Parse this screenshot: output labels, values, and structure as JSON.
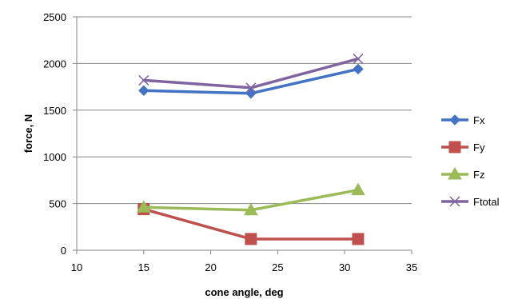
{
  "chart_data": {
    "type": "line",
    "title": "",
    "xlabel": "cone angle, deg",
    "ylabel": "force, N",
    "xlim": [
      10,
      35
    ],
    "ylim": [
      0,
      2500
    ],
    "xticks": [
      10,
      15,
      20,
      25,
      30,
      35
    ],
    "yticks": [
      0,
      500,
      1000,
      1500,
      2000,
      2500
    ],
    "grid": "horizontal major gridlines",
    "legend_position": "right",
    "x": [
      15,
      23,
      31
    ],
    "series": [
      {
        "name": "Fx",
        "values": [
          1710,
          1680,
          1940
        ],
        "color": "#4472C4",
        "marker": "diamond"
      },
      {
        "name": "Fy",
        "values": [
          440,
          120,
          120
        ],
        "color": "#C0504D",
        "marker": "square"
      },
      {
        "name": "Fz",
        "values": [
          460,
          430,
          645
        ],
        "color": "#9BBB59",
        "marker": "triangle"
      },
      {
        "name": "Ftotal",
        "values": [
          1820,
          1740,
          2050
        ],
        "color": "#8064A2",
        "marker": "x"
      }
    ]
  }
}
